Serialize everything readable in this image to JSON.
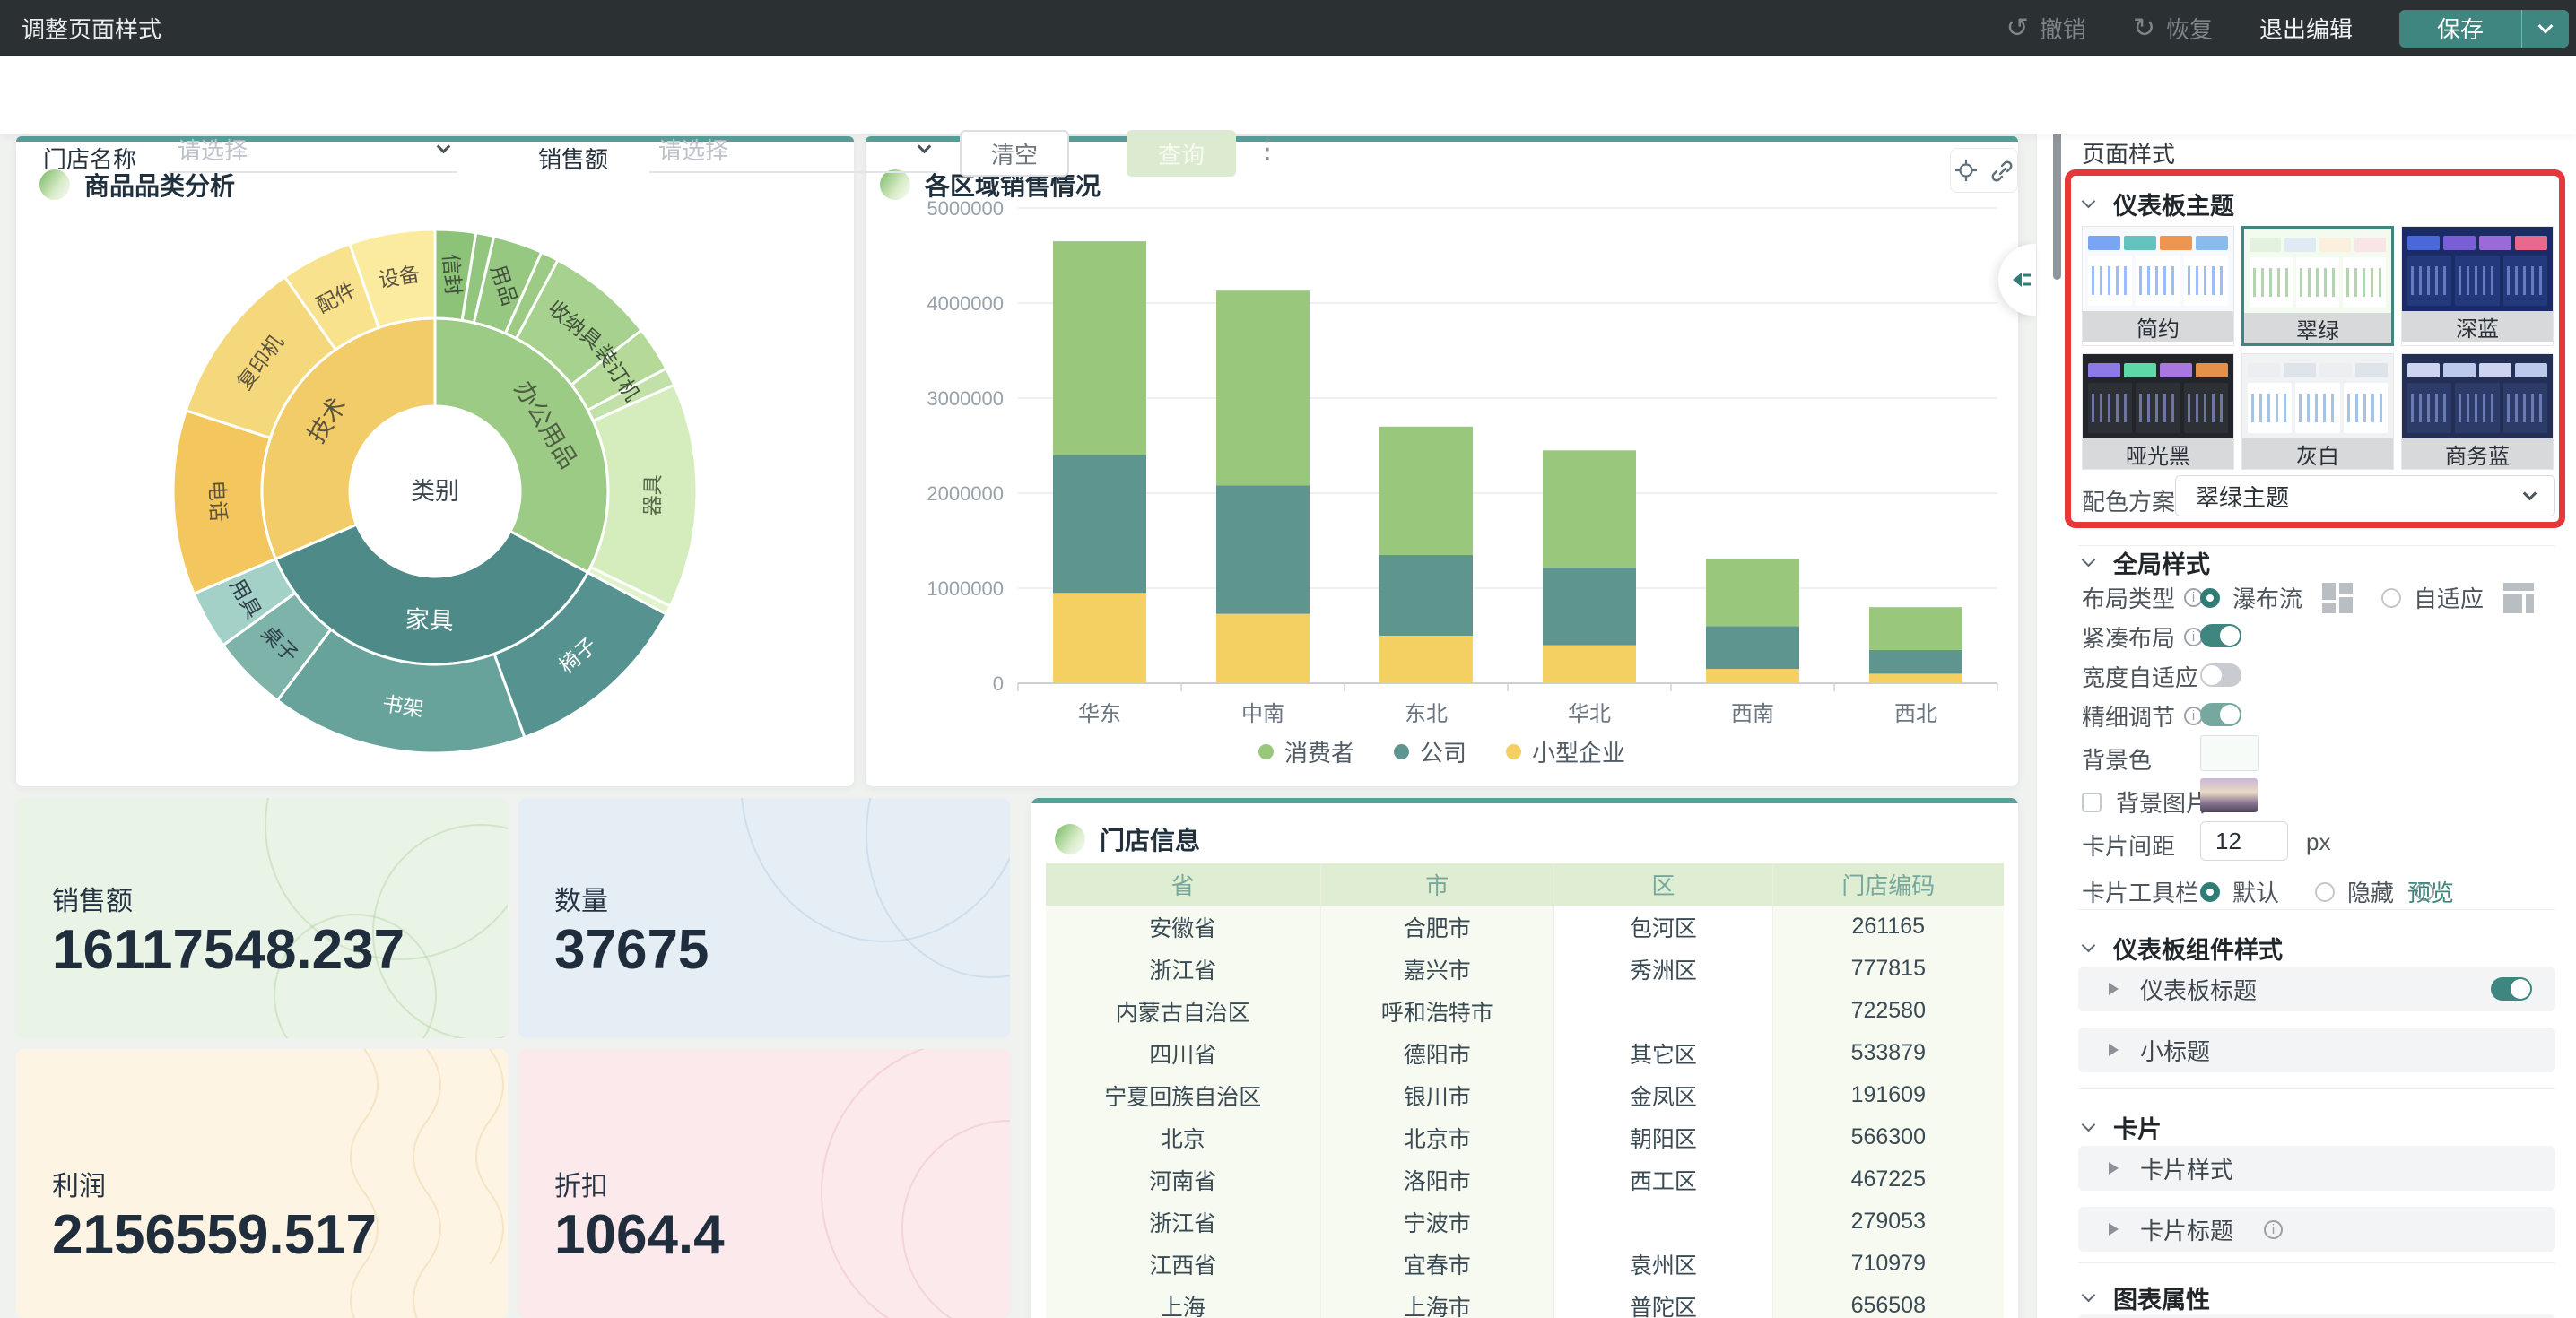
{
  "topbar": {
    "title": "调整页面样式",
    "undo": "撤销",
    "redo": "恢复",
    "exit": "退出编辑",
    "save": "保存"
  },
  "icons": {
    "undo": "↺",
    "redo": "↻",
    "more": "⋮"
  },
  "filterbar": {
    "fields": [
      {
        "label": "门店名称",
        "placeholder": "请选择"
      },
      {
        "label": "销售额",
        "placeholder": "请选择"
      }
    ],
    "clear": "清空",
    "query": "查询"
  },
  "kpis": [
    {
      "label": "销售额",
      "value": "16117548.237",
      "bg": "#e9f3e6",
      "deco": "#a8cf97"
    },
    {
      "label": "数量",
      "value": "37675",
      "bg": "#e5eef4",
      "deco": "#aac6dd"
    },
    {
      "label": "利润",
      "value": "2156559.517",
      "bg": "#fdf4e3",
      "deco": "#ecd3a0"
    },
    {
      "label": "折扣",
      "value": "1064.4",
      "bg": "#fbe9ec",
      "deco": "#eab6c2"
    }
  ],
  "table_card": {
    "title": "门店信息",
    "columns": [
      "省",
      "市",
      "区",
      "门店编码"
    ],
    "rows": [
      [
        "安徽省",
        "合肥市",
        "包河区",
        "261165"
      ],
      [
        "浙江省",
        "嘉兴市",
        "秀洲区",
        "777815"
      ],
      [
        "内蒙古自治区",
        "呼和浩特市",
        "",
        "722580"
      ],
      [
        "四川省",
        "德阳市",
        "其它区",
        "533879"
      ],
      [
        "宁夏回族自治区",
        "银川市",
        "金凤区",
        "191609"
      ],
      [
        "北京",
        "北京市",
        "朝阳区",
        "566300"
      ],
      [
        "河南省",
        "洛阳市",
        "西工区",
        "467225"
      ],
      [
        "浙江省",
        "宁波市",
        "",
        "279053"
      ],
      [
        "江西省",
        "宜春市",
        "袁州区",
        "710979"
      ],
      [
        "上海",
        "上海市",
        "普陀区",
        "656508"
      ]
    ]
  },
  "chart_data": [
    {
      "type": "sunburst",
      "card_title": "商品品类分析",
      "center_label": "类别",
      "nodes": [
        {
          "name": "办公用品",
          "span": 118,
          "color": "#9ccb86",
          "label_color": "#4f5d42",
          "children": [
            {
              "name": "信封",
              "span": 9,
              "color": "#8dc279",
              "label_color": "#41503a"
            },
            {
              "name": "",
              "span": 4,
              "color": "#92c57d"
            },
            {
              "name": "用品",
              "span": 11,
              "color": "#97c881",
              "label_color": "#41503a"
            },
            {
              "name": "",
              "span": 4,
              "color": "#9dcb86"
            },
            {
              "name": "收纳具",
              "span": 24,
              "color": "#a6d18e",
              "label_color": "#41503a"
            },
            {
              "name": "装订机",
              "span": 10,
              "color": "#b4d999",
              "label_color": "#41503a"
            },
            {
              "name": "",
              "span": 4,
              "color": "#c2e1a8"
            },
            {
              "name": "器具",
              "span": 50,
              "color": "#d5edbc",
              "label_color": "#55654a"
            },
            {
              "name": "",
              "span": 2,
              "color": "#e0f3ca"
            }
          ]
        },
        {
          "name": "家具",
          "span": 129,
          "color": "#4e8b88",
          "label_color": "#ffffff",
          "children": [
            {
              "name": "椅子",
              "span": 42,
              "color": "#569390",
              "label_color": "#ffffff"
            },
            {
              "name": "书架",
              "span": 57,
              "color": "#67a29b",
              "label_color": "#ffffff"
            },
            {
              "name": "桌子",
              "span": 17,
              "color": "#7eb3aa",
              "label_color": "#2f4048"
            },
            {
              "name": "用具",
              "span": 13,
              "color": "#a3d1c7",
              "label_color": "#2f4048"
            }
          ]
        },
        {
          "name": "技术",
          "span": 113,
          "color": "#f2cc69",
          "label_color": "#5c5340",
          "children": [
            {
              "name": "电话",
              "span": 41,
              "color": "#f3c75e",
              "label_color": "#5c5340"
            },
            {
              "name": "复印机",
              "span": 37,
              "color": "#f6d87c",
              "label_color": "#5c5340"
            },
            {
              "name": "配件",
              "span": 16,
              "color": "#f8e28d",
              "label_color": "#5c5340"
            },
            {
              "name": "设备",
              "span": 19,
              "color": "#faeb9e",
              "label_color": "#5c5340"
            }
          ]
        }
      ]
    },
    {
      "type": "bar",
      "stacked": true,
      "card_title": "各区域销售情况",
      "categories": [
        "华东",
        "中南",
        "东北",
        "华北",
        "西南",
        "西北"
      ],
      "series": [
        {
          "name": "消费者",
          "color": "#99c77c",
          "values": [
            2250000,
            2050000,
            1350000,
            1230000,
            710000,
            450000
          ]
        },
        {
          "name": "公司",
          "color": "#5f958f",
          "values": [
            1450000,
            1350000,
            850000,
            820000,
            450000,
            250000
          ]
        },
        {
          "name": "小型企业",
          "color": "#f4d063",
          "values": [
            950000,
            730000,
            500000,
            400000,
            150000,
            100000
          ]
        }
      ],
      "ylim": [
        0,
        5000000
      ],
      "yticks": [
        0,
        1000000,
        2000000,
        3000000,
        4000000,
        5000000
      ],
      "legend_position": "bottom",
      "grid": true
    }
  ],
  "panel": {
    "title": "页面样式",
    "theme": {
      "title": "仪表板主题",
      "themes": [
        {
          "name": "简约",
          "bg": "#f7f9fc",
          "panel": "#ffffff",
          "tiles": [
            "#7aa5f5",
            "#64c3be",
            "#f0954d",
            "#8abbef"
          ],
          "accent": "#5b8ff9",
          "dark": false,
          "selected": false
        },
        {
          "name": "翠绿",
          "bg": "#f3faf0",
          "panel": "#ffffff",
          "tiles": [
            "#e3f2de",
            "#dfeaf3",
            "#fbf0dd",
            "#f9e4e6"
          ],
          "accent": "#7fb97a",
          "dark": false,
          "selected": true
        },
        {
          "name": "深蓝",
          "bg": "#1b2b66",
          "panel": "#24387c",
          "tiles": [
            "#4a68d8",
            "#7a5ed6",
            "#9a6ad6",
            "#e7698c"
          ],
          "accent": "#8fa8f0",
          "dark": true,
          "selected": false
        },
        {
          "name": "哑光黑",
          "bg": "#222529",
          "panel": "#2d3136",
          "tiles": [
            "#8d7ae6",
            "#5fd8a8",
            "#a878e0",
            "#e6914a"
          ],
          "accent": "#9aa2ec",
          "dark": true,
          "selected": false
        },
        {
          "name": "灰白",
          "bg": "#f1f2f4",
          "panel": "#ffffff",
          "tiles": [
            "#eceef2",
            "#dfe3ea",
            "#eceef2",
            "#dfe3ea"
          ],
          "accent": "#6c9bd2",
          "dark": false,
          "selected": false
        },
        {
          "name": "商务蓝",
          "bg": "#232f54",
          "panel": "#2d3b68",
          "tiles": [
            "#ccd4f0",
            "#bcc8ec",
            "#ccd4f0",
            "#bcc8ec"
          ],
          "accent": "#90a6e8",
          "dark": true,
          "selected": false
        }
      ],
      "scheme_label": "配色方案",
      "scheme_value": "翠绿主题"
    },
    "global": {
      "title": "全局样式",
      "layout": {
        "label": "布局类型",
        "options": [
          {
            "label": "瀑布流",
            "checked": true
          },
          {
            "label": "自适应",
            "checked": false
          }
        ]
      },
      "compact": {
        "label": "紧凑布局",
        "on": true
      },
      "width_fit": {
        "label": "宽度自适应",
        "on": false
      },
      "fine_tune": {
        "label": "精细调节",
        "on": true
      },
      "bg_color": {
        "label": "背景色",
        "value": "#f7fbf8"
      },
      "bg_image": {
        "label": "背景图片",
        "checked": false
      },
      "card_gap": {
        "label": "卡片间距",
        "value": "12",
        "unit": "px"
      },
      "card_toolbar": {
        "label": "卡片工具栏",
        "options": [
          {
            "label": "默认",
            "checked": true
          },
          {
            "label": "隐藏",
            "checked": false
          }
        ],
        "preview": "预览"
      }
    },
    "component": {
      "title": "仪表板组件样式",
      "items": [
        {
          "label": "仪表板标题",
          "toggle": true
        },
        {
          "label": "小标题"
        }
      ]
    },
    "card": {
      "title": "卡片",
      "items": [
        {
          "label": "卡片样式"
        },
        {
          "label": "卡片标题"
        }
      ]
    },
    "chart_attr": {
      "title": "图表属性"
    }
  },
  "colors": {
    "accent": "#3e867f",
    "accent_dark": "#2f7d75",
    "card_top_border": "#57a099",
    "topbar_bg": "#2b3033",
    "canvas_bg": "#eff2ef",
    "highlight_red": "#e5383b",
    "query_btn_bg": "#dcebcf",
    "table_header_bg": "#dfeed2",
    "table_header_text": "#76a89d"
  }
}
